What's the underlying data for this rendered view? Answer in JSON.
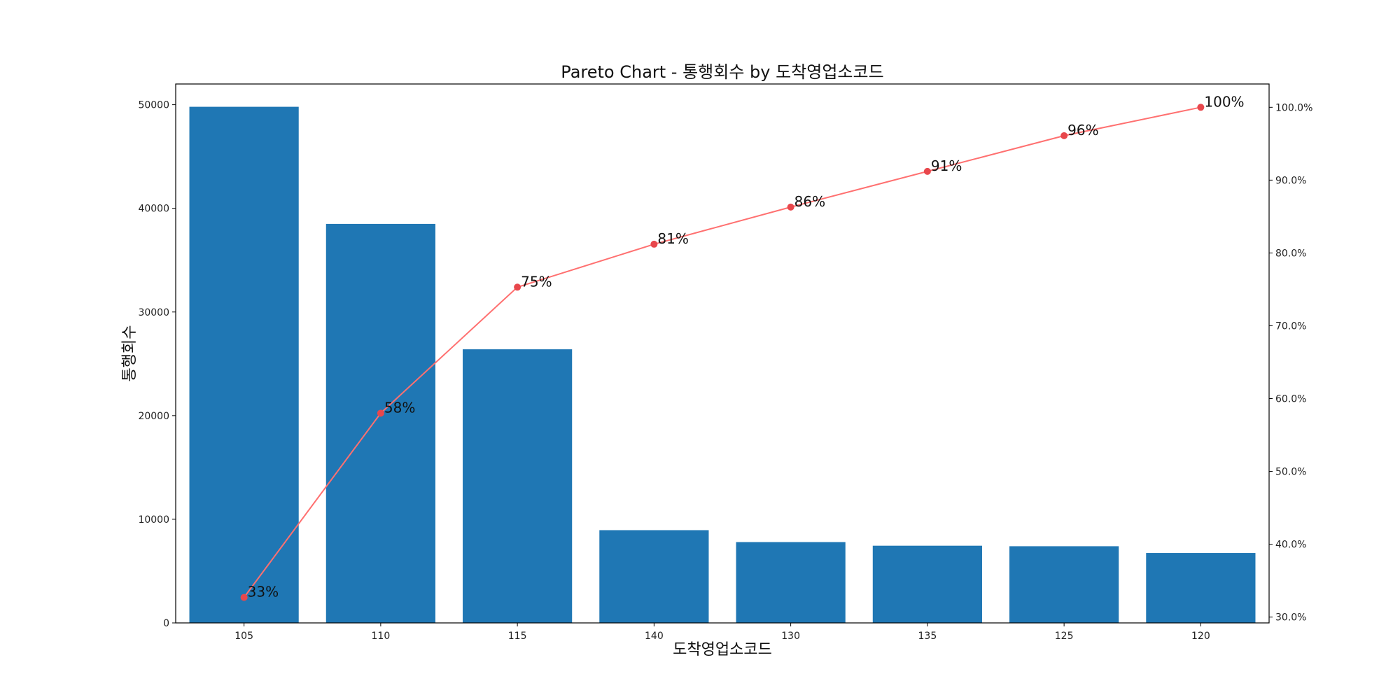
{
  "chart_data": {
    "type": "bar",
    "title": "Pareto Chart -  통행회수 by 도착영업소코드",
    "xlabel": "도착영업소코드",
    "ylabel": "통행회수",
    "categories": [
      "105",
      "110",
      "115",
      "140",
      "130",
      "135",
      "125",
      "120"
    ],
    "series": [
      {
        "type": "bar",
        "values": [
          49800,
          38500,
          26400,
          8950,
          7800,
          7450,
          7400,
          6750
        ]
      },
      {
        "type": "line",
        "axis": "right",
        "values": [
          32.7,
          58.0,
          75.3,
          81.2,
          86.3,
          91.2,
          96.1,
          100.0
        ]
      }
    ],
    "point_labels": [
      "33%",
      "58%",
      "75%",
      "81%",
      "86%",
      "91%",
      "96%",
      "100%"
    ],
    "ylim": [
      0,
      52000
    ],
    "yticks": [
      0,
      10000,
      20000,
      30000,
      40000,
      50000
    ],
    "y2lim": [
      29.2,
      103.2
    ],
    "y2ticks": [
      "30.0%",
      "40.0%",
      "50.0%",
      "60.0%",
      "70.0%",
      "80.0%",
      "90.0%",
      "100.0%"
    ],
    "y2tick_values": [
      30,
      40,
      50,
      60,
      70,
      80,
      90,
      100
    ],
    "colors": {
      "bar": "#1f77b4",
      "line": "#ff7070",
      "marker": "#e8474c"
    },
    "grid": false
  }
}
